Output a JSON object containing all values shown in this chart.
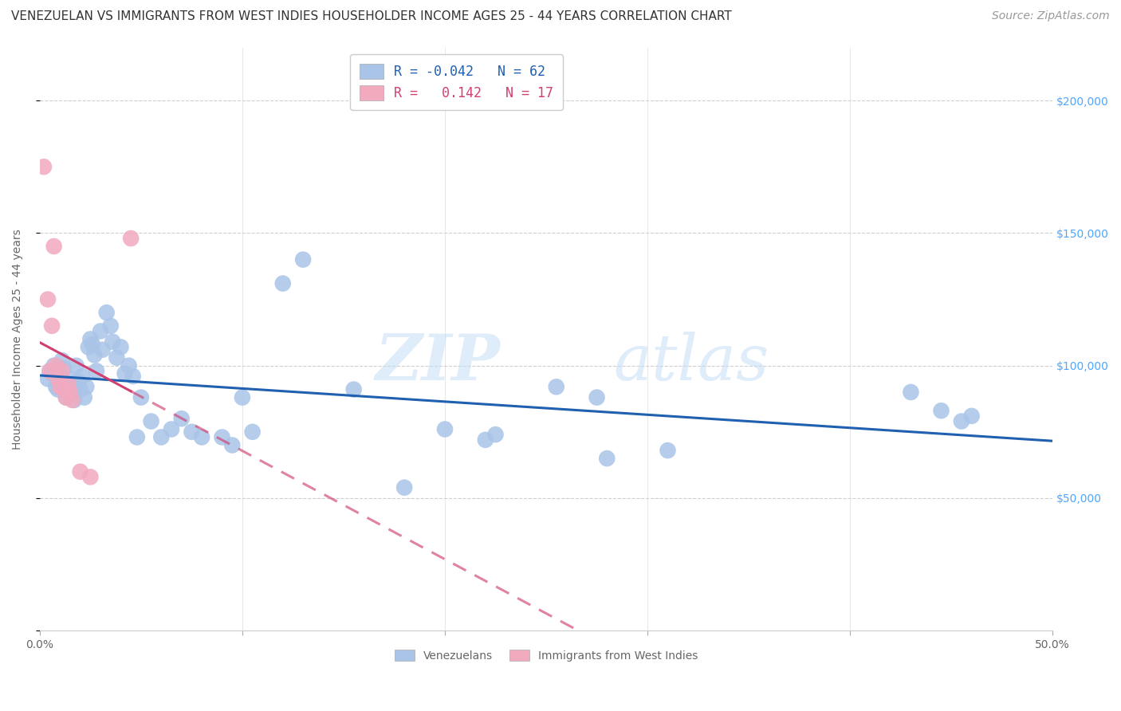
{
  "title": "VENEZUELAN VS IMMIGRANTS FROM WEST INDIES HOUSEHOLDER INCOME AGES 25 - 44 YEARS CORRELATION CHART",
  "source": "Source: ZipAtlas.com",
  "ylabel": "Householder Income Ages 25 - 44 years",
  "xlim": [
    0.0,
    0.5
  ],
  "ylim": [
    0,
    220000
  ],
  "background_color": "#ffffff",
  "grid_color": "#d0d0d0",
  "venezuelan_color": "#aac4e8",
  "westindies_color": "#f2aabf",
  "venezuelan_line_color": "#2060b0",
  "westindies_line_color": "#d04070",
  "legend_R_blue": "-0.042",
  "legend_N_blue": "62",
  "legend_R_pink": "0.142",
  "legend_N_pink": "17",
  "tick_color_y": "#4da6ff",
  "tick_color_x": "#666666",
  "venezuelan_x": [
    0.004,
    0.005,
    0.006,
    0.007,
    0.008,
    0.009,
    0.01,
    0.011,
    0.012,
    0.013,
    0.014,
    0.015,
    0.016,
    0.017,
    0.018,
    0.019,
    0.02,
    0.021,
    0.022,
    0.023,
    0.024,
    0.025,
    0.026,
    0.027,
    0.028,
    0.03,
    0.031,
    0.033,
    0.035,
    0.036,
    0.038,
    0.04,
    0.042,
    0.044,
    0.046,
    0.048,
    0.05,
    0.055,
    0.06,
    0.065,
    0.07,
    0.075,
    0.08,
    0.09,
    0.095,
    0.1,
    0.105,
    0.12,
    0.13,
    0.155,
    0.18,
    0.2,
    0.22,
    0.225,
    0.255,
    0.275,
    0.28,
    0.31,
    0.43,
    0.445,
    0.455,
    0.46
  ],
  "venezuelan_y": [
    95000,
    98000,
    97000,
    100000,
    92000,
    91000,
    96000,
    102000,
    99000,
    88000,
    93000,
    95000,
    90000,
    87000,
    100000,
    94000,
    91000,
    96000,
    88000,
    92000,
    107000,
    110000,
    108000,
    104000,
    98000,
    113000,
    106000,
    120000,
    115000,
    109000,
    103000,
    107000,
    97000,
    100000,
    96000,
    73000,
    88000,
    79000,
    73000,
    76000,
    80000,
    75000,
    73000,
    73000,
    70000,
    88000,
    75000,
    131000,
    140000,
    91000,
    54000,
    76000,
    72000,
    74000,
    92000,
    88000,
    65000,
    68000,
    90000,
    83000,
    79000,
    81000
  ],
  "westindies_x": [
    0.002,
    0.004,
    0.005,
    0.006,
    0.007,
    0.008,
    0.009,
    0.01,
    0.011,
    0.012,
    0.013,
    0.014,
    0.015,
    0.016,
    0.02,
    0.025,
    0.045
  ],
  "westindies_y": [
    175000,
    125000,
    98000,
    115000,
    145000,
    100000,
    95000,
    92000,
    98000,
    91000,
    88000,
    93000,
    90000,
    87000,
    60000,
    58000,
    148000
  ],
  "watermark_text": "ZIP",
  "watermark_text2": "atlas",
  "title_fontsize": 11,
  "source_fontsize": 10,
  "axis_label_fontsize": 10,
  "tick_fontsize": 10,
  "legend_fontsize": 12
}
